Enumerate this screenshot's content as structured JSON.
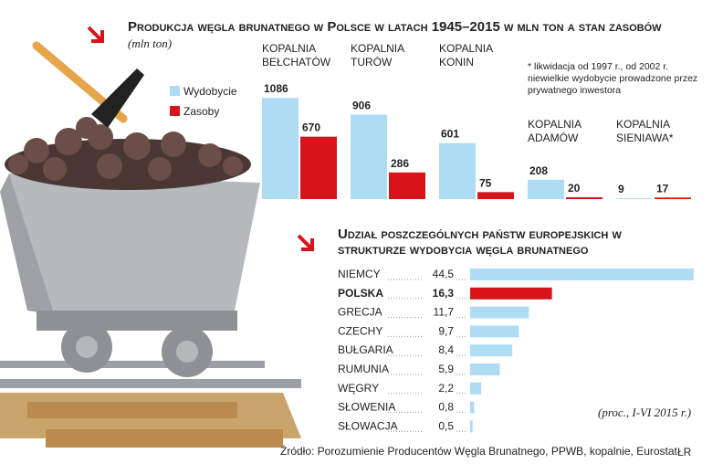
{
  "chart_data": [
    {
      "type": "bar",
      "title": "Produkcja węgla brunatnego w Polsce w latach 1945–2015 w mln ton a stan zasobów",
      "subtitle": "(mln ton)",
      "annotation": "* likwidacja od 1997 r., od 2002 r. niewielkie wydobycie prowadzone przez prywatnego inwestora",
      "categories": [
        "KOPALNIA BEŁCHATÓW",
        "KOPALNIA TURÓW",
        "KOPALNIA KONIN",
        "KOPALNIA ADAMÓW",
        "KOPALNIA SIENIAWA*"
      ],
      "series": [
        {
          "name": "Wydobycie",
          "color": "#aedcf3",
          "values": [
            1086,
            906,
            601,
            208,
            9
          ]
        },
        {
          "name": "Zasoby",
          "color": "#d7141a",
          "values": [
            670,
            286,
            75,
            20,
            17
          ]
        }
      ]
    },
    {
      "type": "hbar",
      "title": "Udział poszczególnych państw europejskich w strukturze wydobycia węgla brunatnego",
      "annotation": "(proc., I-VI 2015 r.)",
      "categories": [
        "NIEMCY",
        "POLSKA",
        "GRECJA",
        "CZECHY",
        "BUŁGARIA",
        "RUMUNIA",
        "WĘGRY",
        "SŁOWENIA",
        "SŁOWACJA"
      ],
      "values": [
        44.5,
        16.3,
        11.7,
        9.7,
        8.4,
        5.9,
        2.2,
        0.8,
        0.5
      ],
      "value_labels": [
        "44,5",
        "16,3",
        "11,7",
        "9,7",
        "8,4",
        "5,9",
        "2,2",
        "0,8",
        "0,5"
      ],
      "colors": [
        "#aedcf3",
        "#d7141a",
        "#aedcf3",
        "#aedcf3",
        "#aedcf3",
        "#aedcf3",
        "#aedcf3",
        "#aedcf3",
        "#aedcf3"
      ]
    }
  ],
  "source": "Źródło: Porozumienie Producentów Węgla Brunatnego, PPWB, kopalnie, Eurostat",
  "credit": "ŁR"
}
